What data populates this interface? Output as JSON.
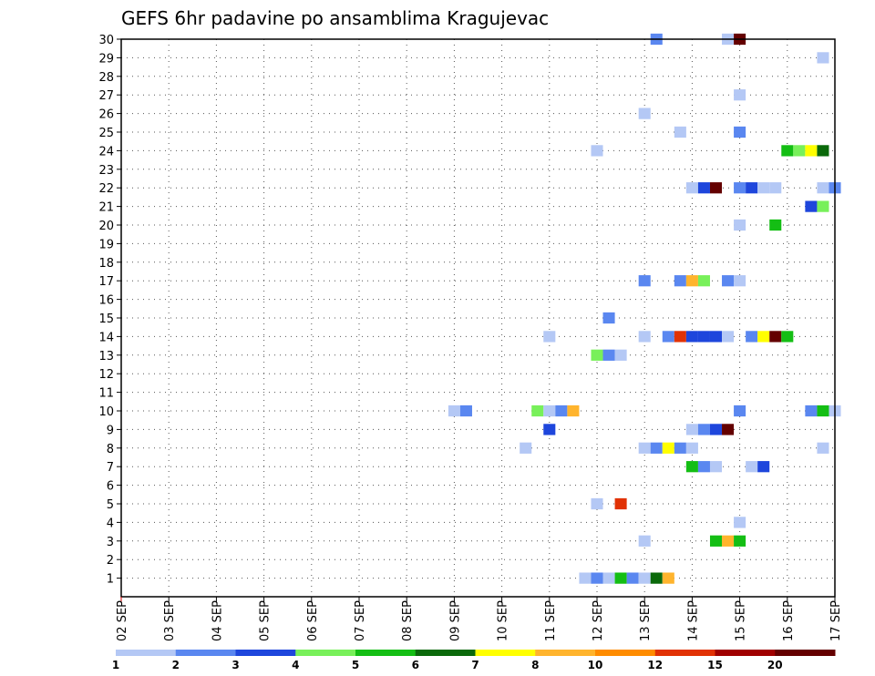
{
  "chart_data": {
    "type": "heatmap",
    "title": "GEFS 6hr padavine po ansamblima Kragujevac",
    "xlabel": "",
    "ylabel": "",
    "x_ticks": [
      "02 SEP",
      "03 SEP",
      "04 SEP",
      "05 SEP",
      "06 SEP",
      "07 SEP",
      "08 SEP",
      "09 SEP",
      "10 SEP",
      "11 SEP",
      "12 SEP",
      "13 SEP",
      "14 SEP",
      "15 SEP",
      "16 SEP",
      "17 SEP"
    ],
    "y_ticks": [
      "1",
      "2",
      "3",
      "4",
      "5",
      "6",
      "7",
      "8",
      "9",
      "10",
      "11",
      "12",
      "13",
      "14",
      "15",
      "16",
      "17",
      "18",
      "19",
      "20",
      "21",
      "22",
      "23",
      "24",
      "25",
      "26",
      "27",
      "28",
      "29",
      "30"
    ],
    "grid": true,
    "colorbar": {
      "labels": [
        "1",
        "2",
        "3",
        "4",
        "5",
        "6",
        "7",
        "8",
        "10",
        "12",
        "15",
        "20"
      ],
      "colors": [
        "#b4c8f5",
        "#5a87f0",
        "#1e46dc",
        "#78f05a",
        "#14be14",
        "#0a690a",
        "#ffff00",
        "#ffb42d",
        "#ff8c00",
        "#e13205",
        "#a00000",
        "#640000"
      ]
    },
    "cells": [
      {
        "member": 30,
        "time": 22.5,
        "level": 2
      },
      {
        "member": 30,
        "time": 25.5,
        "level": 1
      },
      {
        "member": 30,
        "time": 26,
        "level": 12
      },
      {
        "member": 29,
        "time": 29.5,
        "level": 1
      },
      {
        "member": 27,
        "time": 26,
        "level": 1
      },
      {
        "member": 26,
        "time": 22,
        "level": 1
      },
      {
        "member": 25,
        "time": 23.5,
        "level": 1
      },
      {
        "member": 25,
        "time": 26,
        "level": 2
      },
      {
        "member": 24,
        "time": 20,
        "level": 1
      },
      {
        "member": 24,
        "time": 28,
        "level": 5
      },
      {
        "member": 24,
        "time": 28.5,
        "level": 4
      },
      {
        "member": 24,
        "time": 29,
        "level": 7
      },
      {
        "member": 24,
        "time": 29.5,
        "level": 6
      },
      {
        "member": 22,
        "time": 24,
        "level": 1
      },
      {
        "member": 22,
        "time": 24.5,
        "level": 3
      },
      {
        "member": 22,
        "time": 25,
        "level": 12
      },
      {
        "member": 22,
        "time": 26,
        "level": 2
      },
      {
        "member": 22,
        "time": 26.5,
        "level": 3
      },
      {
        "member": 22,
        "time": 27,
        "level": 1
      },
      {
        "member": 22,
        "time": 27.5,
        "level": 1
      },
      {
        "member": 22,
        "time": 29.5,
        "level": 1
      },
      {
        "member": 22,
        "time": 30,
        "level": 2
      },
      {
        "member": 21,
        "time": 29,
        "level": 3
      },
      {
        "member": 21,
        "time": 29.5,
        "level": 4
      },
      {
        "member": 20,
        "time": 26,
        "level": 1
      },
      {
        "member": 20,
        "time": 27.5,
        "level": 5
      },
      {
        "member": 17,
        "time": 22,
        "level": 2
      },
      {
        "member": 17,
        "time": 23.5,
        "level": 2
      },
      {
        "member": 17,
        "time": 24,
        "level": 8
      },
      {
        "member": 17,
        "time": 24.5,
        "level": 4
      },
      {
        "member": 17,
        "time": 25.5,
        "level": 2
      },
      {
        "member": 17,
        "time": 26,
        "level": 1
      },
      {
        "member": 15,
        "time": 20.5,
        "level": 2
      },
      {
        "member": 14,
        "time": 18,
        "level": 1
      },
      {
        "member": 14,
        "time": 22,
        "level": 1
      },
      {
        "member": 14,
        "time": 23,
        "level": 2
      },
      {
        "member": 14,
        "time": 23.5,
        "level": 10
      },
      {
        "member": 14,
        "time": 24,
        "level": 3
      },
      {
        "member": 14,
        "time": 24.5,
        "level": 3
      },
      {
        "member": 14,
        "time": 25,
        "level": 3
      },
      {
        "member": 14,
        "time": 25.5,
        "level": 1
      },
      {
        "member": 14,
        "time": 26.5,
        "level": 2
      },
      {
        "member": 14,
        "time": 27,
        "level": 7
      },
      {
        "member": 14,
        "time": 27.5,
        "level": 12
      },
      {
        "member": 14,
        "time": 28,
        "level": 5
      },
      {
        "member": 13,
        "time": 20,
        "level": 4
      },
      {
        "member": 13,
        "time": 20.5,
        "level": 2
      },
      {
        "member": 13,
        "time": 21,
        "level": 1
      },
      {
        "member": 10,
        "time": 14,
        "level": 1
      },
      {
        "member": 10,
        "time": 14.5,
        "level": 2
      },
      {
        "member": 10,
        "time": 17.5,
        "level": 4
      },
      {
        "member": 10,
        "time": 18,
        "level": 1
      },
      {
        "member": 10,
        "time": 18.5,
        "level": 2
      },
      {
        "member": 10,
        "time": 19,
        "level": 8
      },
      {
        "member": 10,
        "time": 26,
        "level": 2
      },
      {
        "member": 10,
        "time": 29,
        "level": 2
      },
      {
        "member": 10,
        "time": 29.5,
        "level": 5
      },
      {
        "member": 10,
        "time": 30,
        "level": 1
      },
      {
        "member": 9,
        "time": 18,
        "level": 3
      },
      {
        "member": 9,
        "time": 24,
        "level": 1
      },
      {
        "member": 9,
        "time": 24.5,
        "level": 2
      },
      {
        "member": 9,
        "time": 25,
        "level": 3
      },
      {
        "member": 9,
        "time": 25.5,
        "level": 12
      },
      {
        "member": 8,
        "time": 17,
        "level": 1
      },
      {
        "member": 8,
        "time": 22,
        "level": 1
      },
      {
        "member": 8,
        "time": 22.5,
        "level": 2
      },
      {
        "member": 8,
        "time": 23,
        "level": 7
      },
      {
        "member": 8,
        "time": 23.5,
        "level": 2
      },
      {
        "member": 8,
        "time": 24,
        "level": 1
      },
      {
        "member": 8,
        "time": 29.5,
        "level": 1
      },
      {
        "member": 7,
        "time": 24,
        "level": 5
      },
      {
        "member": 7,
        "time": 24.5,
        "level": 2
      },
      {
        "member": 7,
        "time": 25,
        "level": 1
      },
      {
        "member": 7,
        "time": 26.5,
        "level": 1
      },
      {
        "member": 7,
        "time": 27,
        "level": 3
      },
      {
        "member": 5,
        "time": 20,
        "level": 1
      },
      {
        "member": 5,
        "time": 21,
        "level": 10
      },
      {
        "member": 4,
        "time": 26,
        "level": 1
      },
      {
        "member": 3,
        "time": 22,
        "level": 1
      },
      {
        "member": 3,
        "time": 25,
        "level": 5
      },
      {
        "member": 3,
        "time": 25.5,
        "level": 8
      },
      {
        "member": 3,
        "time": 26,
        "level": 5
      },
      {
        "member": 1,
        "time": 19.5,
        "level": 1
      },
      {
        "member": 1,
        "time": 20,
        "level": 2
      },
      {
        "member": 1,
        "time": 20.5,
        "level": 1
      },
      {
        "member": 1,
        "time": 21,
        "level": 5
      },
      {
        "member": 1,
        "time": 21.5,
        "level": 2
      },
      {
        "member": 1,
        "time": 22,
        "level": 1
      },
      {
        "member": 1,
        "time": 22.5,
        "level": 6
      },
      {
        "member": 1,
        "time": 23,
        "level": 8
      }
    ]
  }
}
